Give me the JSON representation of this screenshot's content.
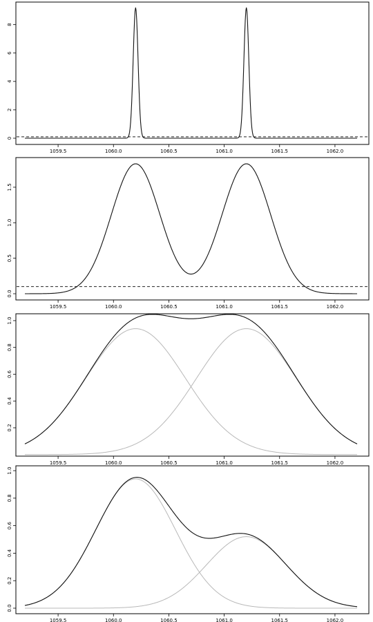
{
  "chart_data": [
    {
      "type": "line",
      "title": "",
      "xlabel": "",
      "ylabel": "",
      "xlim": [
        1059.2,
        1062.2
      ],
      "ylim": [
        0,
        9.2
      ],
      "x_ticks": [
        "1059.5",
        "1060.0",
        "1060.5",
        "1061.0",
        "1061.5",
        "1062.0"
      ],
      "y_ticks": [
        "0",
        "2",
        "4",
        "6",
        "8"
      ],
      "series": [
        {
          "style": "solid",
          "color": "#111111",
          "peaks": [
            1060.2,
            1061.2
          ],
          "peak_height": 9.2,
          "sigma": 0.022
        }
      ],
      "threshold": 0.1
    },
    {
      "type": "line",
      "title": "",
      "xlabel": "",
      "ylabel": "",
      "xlim": [
        1059.2,
        1062.2
      ],
      "ylim": [
        0,
        1.83
      ],
      "x_ticks": [
        "1059.5",
        "1060.0",
        "1060.5",
        "1061.0",
        "1061.5",
        "1062.0"
      ],
      "y_ticks": [
        "0.0",
        "0.5",
        "1.0",
        "1.5"
      ],
      "series": [
        {
          "style": "solid",
          "color": "#111111",
          "peaks": [
            1060.2,
            1061.2
          ],
          "peak_height": 1.83,
          "sigma": 0.22
        }
      ],
      "threshold": 0.1
    },
    {
      "type": "line",
      "title": "",
      "xlabel": "",
      "ylabel": "",
      "xlim": [
        1059.2,
        1062.2
      ],
      "ylim": [
        0.04,
        1.01
      ],
      "x_ticks": [
        "1059.5",
        "1060.0",
        "1060.5",
        "1061.0",
        "1061.5",
        "1062.0"
      ],
      "y_ticks": [
        "0.2",
        "0.4",
        "0.6",
        "0.8",
        "1.0"
      ],
      "series": [
        {
          "style": "component",
          "color": "#b8b8b8",
          "center": 1060.2,
          "amplitude": 0.94,
          "sigma": 0.45
        },
        {
          "style": "component",
          "color": "#b8b8b8",
          "center": 1061.2,
          "amplitude": 0.94,
          "sigma": 0.45
        },
        {
          "style": "sum",
          "color": "#111111"
        }
      ]
    },
    {
      "type": "line",
      "title": "",
      "xlabel": "",
      "ylabel": "",
      "xlim": [
        1059.2,
        1062.2
      ],
      "ylim": [
        0,
        0.97
      ],
      "x_ticks": [
        "1059.5",
        "1060.0",
        "1060.5",
        "1061.0",
        "1061.5",
        "1062.0"
      ],
      "y_ticks": [
        "0.0",
        "0.2",
        "0.4",
        "0.6",
        "0.8",
        "1.0"
      ],
      "series": [
        {
          "style": "component",
          "color": "#b8b8b8",
          "center": 1060.2,
          "amplitude": 0.94,
          "sigma": 0.36
        },
        {
          "style": "component",
          "color": "#b8b8b8",
          "center": 1061.2,
          "amplitude": 0.52,
          "sigma": 0.36
        },
        {
          "style": "sum",
          "color": "#111111"
        }
      ]
    }
  ]
}
